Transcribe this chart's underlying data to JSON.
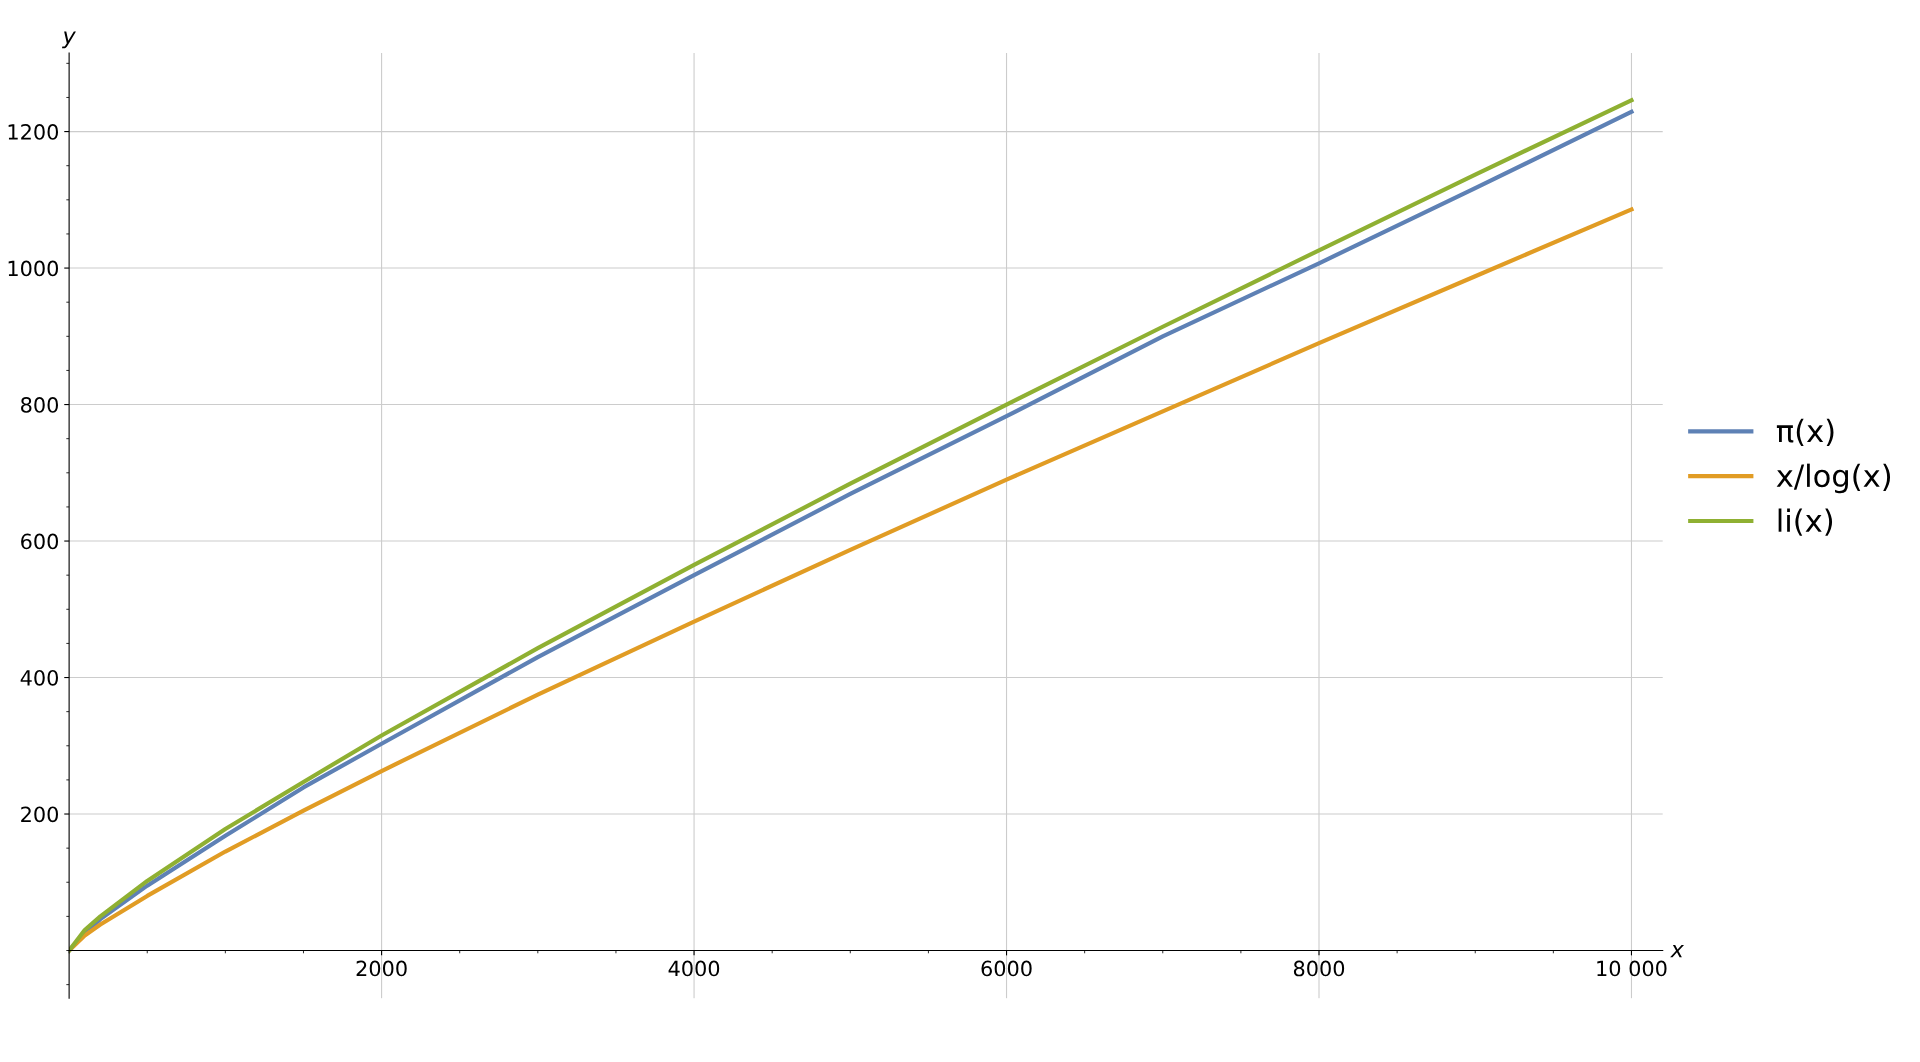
{
  "chart_data": {
    "type": "line",
    "xlabel": "x",
    "ylabel": "y",
    "x": [
      0,
      100,
      200,
      500,
      1000,
      1500,
      2000,
      3000,
      4000,
      5000,
      6000,
      7000,
      8000,
      9000,
      10000
    ],
    "series": [
      {
        "name": "π(x)",
        "color": "#5e81b5",
        "values": [
          0,
          25,
          46,
          95,
          168,
          239,
          303,
          430,
          550,
          669,
          783,
          900,
          1007,
          1117,
          1229
        ]
      },
      {
        "name": "x/log(x)",
        "color": "#e19c24",
        "values": [
          0,
          22,
          38,
          80,
          145,
          205,
          263,
          375,
          482,
          587,
          690,
          790,
          890,
          988,
          1086
        ]
      },
      {
        "name": "li(x)",
        "color": "#8fb032",
        "values": [
          0,
          30,
          50,
          102,
          178,
          247,
          315,
          443,
          565,
          684,
          800,
          914,
          1026,
          1137,
          1246
        ]
      }
    ],
    "xlim": [
      0,
      10200
    ],
    "ylim": [
      -70,
      1315
    ],
    "xticks": [
      2000,
      4000,
      6000,
      8000,
      {
        "value": 10000,
        "label": "10 000"
      }
    ],
    "yticks": [
      200,
      400,
      600,
      800,
      1000,
      1200
    ],
    "grid": true,
    "legend": "right",
    "marker": "none",
    "line_style": "solid"
  }
}
